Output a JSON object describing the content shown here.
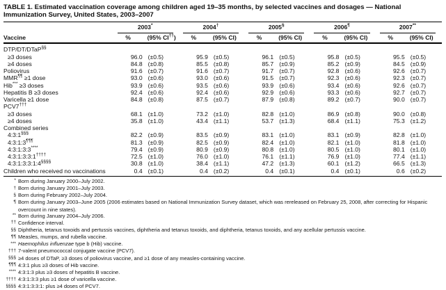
{
  "title": "TABLE 1. Estimated vaccination coverage among children aged 19–35 months, by selected vaccines and dosages — National Immunization Survey, United States, 2003–2007",
  "table": {
    "vaccine_header": "Vaccine",
    "year_groups": [
      {
        "year": "2003",
        "sup": "*",
        "pct": "%",
        "ci_pre": "(95% CI",
        "ci_sup": "††",
        "ci_post": ")"
      },
      {
        "year": "2004",
        "sup": "†",
        "pct": "%",
        "ci": "(95% CI)"
      },
      {
        "year": "2005",
        "sup": "§",
        "pct": "%",
        "ci": "(95% CI)"
      },
      {
        "year": "2006",
        "sup": "¶",
        "pct": "%",
        "ci": "(95% CI)"
      },
      {
        "year": "2007",
        "sup": "**",
        "pct": "%",
        "ci": "(95% CI)"
      }
    ],
    "rows": [
      {
        "type": "section",
        "pre": "DTP/DT/DTaP",
        "sup": "§§",
        "values": []
      },
      {
        "type": "sub",
        "pre": "≥3 doses",
        "values": [
          [
            "96.0",
            "(±0.5)"
          ],
          [
            "95.9",
            "(±0.5)"
          ],
          [
            "96.1",
            "(±0.5)"
          ],
          [
            "95.8",
            "(±0.5)"
          ],
          [
            "95.5",
            "(±0.5)"
          ]
        ]
      },
      {
        "type": "sub",
        "pre": "≥4 doses",
        "values": [
          [
            "84.8",
            "(±0.8)"
          ],
          [
            "85.5",
            "(±0.8)"
          ],
          [
            "85.7",
            "(±0.9)"
          ],
          [
            "85.2",
            "(±0.9)"
          ],
          [
            "84.5",
            "(±0.9)"
          ]
        ]
      },
      {
        "type": "plain",
        "pre": "Poliovirus",
        "values": [
          [
            "91.6",
            "(±0.7)"
          ],
          [
            "91.6",
            "(±0.7)"
          ],
          [
            "91.7",
            "(±0.7)"
          ],
          [
            "92.8",
            "(±0.6)"
          ],
          [
            "92.6",
            "(±0.7)"
          ]
        ]
      },
      {
        "type": "plain",
        "pre": "MMR",
        "sup": "¶¶",
        "post": " ≥1 dose",
        "values": [
          [
            "93.0",
            "(±0.6)"
          ],
          [
            "93.0",
            "(±0.6)"
          ],
          [
            "91.5",
            "(±0.7)"
          ],
          [
            "92.3",
            "(±0.6)"
          ],
          [
            "92.3",
            "(±0.7)"
          ]
        ]
      },
      {
        "type": "plain",
        "pre": "Hib",
        "sup": "***",
        "post": " ≥3 doses",
        "values": [
          [
            "93.9",
            "(±0.6)"
          ],
          [
            "93.5",
            "(±0.6)"
          ],
          [
            "93.9",
            "(±0.6)"
          ],
          [
            "93.4",
            "(±0.6)"
          ],
          [
            "92.6",
            "(±0.7)"
          ]
        ]
      },
      {
        "type": "plain",
        "pre": "Hepatitis B ≥3 doses",
        "values": [
          [
            "92.4",
            "(±0.6)"
          ],
          [
            "92.4",
            "(±0.6)"
          ],
          [
            "92.9",
            "(±0.6)"
          ],
          [
            "93.3",
            "(±0.6)"
          ],
          [
            "92.7",
            "(±0.7)"
          ]
        ]
      },
      {
        "type": "plain",
        "pre": "Varicella ≥1 dose",
        "values": [
          [
            "84.8",
            "(±0.8)"
          ],
          [
            "87.5",
            "(±0.7)"
          ],
          [
            "87.9",
            "(±0.8)"
          ],
          [
            "89.2",
            "(±0.7)"
          ],
          [
            "90.0",
            "(±0.7)"
          ]
        ]
      },
      {
        "type": "section",
        "pre": "PCV7",
        "sup": "†††",
        "values": []
      },
      {
        "type": "sub",
        "pre": "≥3 doses",
        "values": [
          [
            "68.1",
            "(±1.0)"
          ],
          [
            "73.2",
            "(±1.0)"
          ],
          [
            "82.8",
            "(±1.0)"
          ],
          [
            "86.9",
            "(±0.8)"
          ],
          [
            "90.0",
            "(±0.8)"
          ]
        ]
      },
      {
        "type": "sub",
        "pre": "≥4 doses",
        "values": [
          [
            "35.8",
            "(±1.0)"
          ],
          [
            "43.4",
            "(±1.1)"
          ],
          [
            "53.7",
            "(±1.3)"
          ],
          [
            "68.4",
            "(±1.1)"
          ],
          [
            "75.3",
            "(±1.2)"
          ]
        ]
      },
      {
        "type": "section",
        "pre": "Combined series",
        "values": []
      },
      {
        "type": "sub",
        "pre": "4:3:1",
        "sup": "§§§",
        "values": [
          [
            "82.2",
            "(±0.9)"
          ],
          [
            "83.5",
            "(±0.9)"
          ],
          [
            "83.1",
            "(±1.0)"
          ],
          [
            "83.1",
            "(±0.9)"
          ],
          [
            "82.8",
            "(±1.0)"
          ]
        ]
      },
      {
        "type": "sub",
        "pre": "4:3:1:3",
        "sup": "¶¶¶",
        "values": [
          [
            "81.3",
            "(±0.9)"
          ],
          [
            "82.5",
            "(±0.9)"
          ],
          [
            "82.4",
            "(±1.0)"
          ],
          [
            "82.1",
            "(±1.0)"
          ],
          [
            "81.8",
            "(±1.0)"
          ]
        ]
      },
      {
        "type": "sub",
        "pre": "4:3:1:3:3",
        "sup": "****",
        "values": [
          [
            "79.4",
            "(±0.9)"
          ],
          [
            "80.9",
            "(±0.9)"
          ],
          [
            "80.8",
            "(±1.0)"
          ],
          [
            "80.5",
            "(±1.0)"
          ],
          [
            "80.1",
            "(±1.0)"
          ]
        ]
      },
      {
        "type": "sub",
        "pre": "4:3:1:3:3:1",
        "sup": "††††",
        "values": [
          [
            "72.5",
            "(±1.0)"
          ],
          [
            "76.0",
            "(±1.0)"
          ],
          [
            "76.1",
            "(±1.1)"
          ],
          [
            "76.9",
            "(±1.0)"
          ],
          [
            "77.4",
            "(±1.1)"
          ]
        ]
      },
      {
        "type": "sub",
        "pre": "4:3:1:3:3:1:4",
        "sup": "§§§§",
        "values": [
          [
            "30.8",
            "(±1.0)"
          ],
          [
            "38.4",
            "(±1.1)"
          ],
          [
            "47.2",
            "(±1.3)"
          ],
          [
            "60.1",
            "(±1.2)"
          ],
          [
            "66.5",
            "(±1.3)"
          ]
        ]
      },
      {
        "type": "plain",
        "pre": "Children who received no vaccinations",
        "values": [
          [
            "0.4",
            "(±0.1)"
          ],
          [
            "0.4",
            "(±0.2)"
          ],
          [
            "0.4",
            "(±0.1)"
          ],
          [
            "0.4",
            "(±0.1)"
          ],
          [
            "0.6",
            "(±0.2)"
          ]
        ]
      }
    ]
  },
  "footnotes": [
    {
      "sym": "*",
      "text": "Born during January 2000–July 2002."
    },
    {
      "sym": "†",
      "text": "Born during January 2001–July 2003."
    },
    {
      "sym": "§",
      "text": "Born during February 2002–July 2004."
    },
    {
      "sym": "¶",
      "text": "Born during January 2003–June 2005 (2006 estimates based on National Immunization Survey dataset, which was rereleased on February 25, 2008, after correcting for Hispanic overcount in nine states)."
    },
    {
      "sym": "**",
      "text": "Born during January 2004–July 2006."
    },
    {
      "sym": "††",
      "text": "Confidence interval."
    },
    {
      "sym": "§§",
      "text": "Diphtheria, tetanus toxoids and pertussis vaccines, diphtheria and tetanus toxoids, and diphtheria, tetanus toxoids, and any acellular pertussis vaccine."
    },
    {
      "sym": "¶¶",
      "text": "Measles, mumps, and rubella vaccine."
    },
    {
      "sym": "***",
      "italic": "Haemophilus influenzae",
      "text": " type b (Hib) vaccine."
    },
    {
      "sym": "†††",
      "text": "7-valent pneumococcal conjugate vaccine (PCV7)."
    },
    {
      "sym": "§§§",
      "text": "≥4 doses of DTaP, ≥3 doses of poliovirus vaccine, and ≥1 dose of any measles-containing vaccine."
    },
    {
      "sym": "¶¶¶",
      "text": "4:3:1 plus ≥3 doses of Hib vaccine."
    },
    {
      "sym": "****",
      "text": "4:3:1:3 plus ≥3 doses of hepatitis B vaccine."
    },
    {
      "sym": "††††",
      "text": "4:3:1:3:3 plus ≥1 dose of varicella vaccine."
    },
    {
      "sym": "§§§§",
      "text": "4:3:1:3:3:1: plus ≥4 doses of PCV7."
    }
  ]
}
